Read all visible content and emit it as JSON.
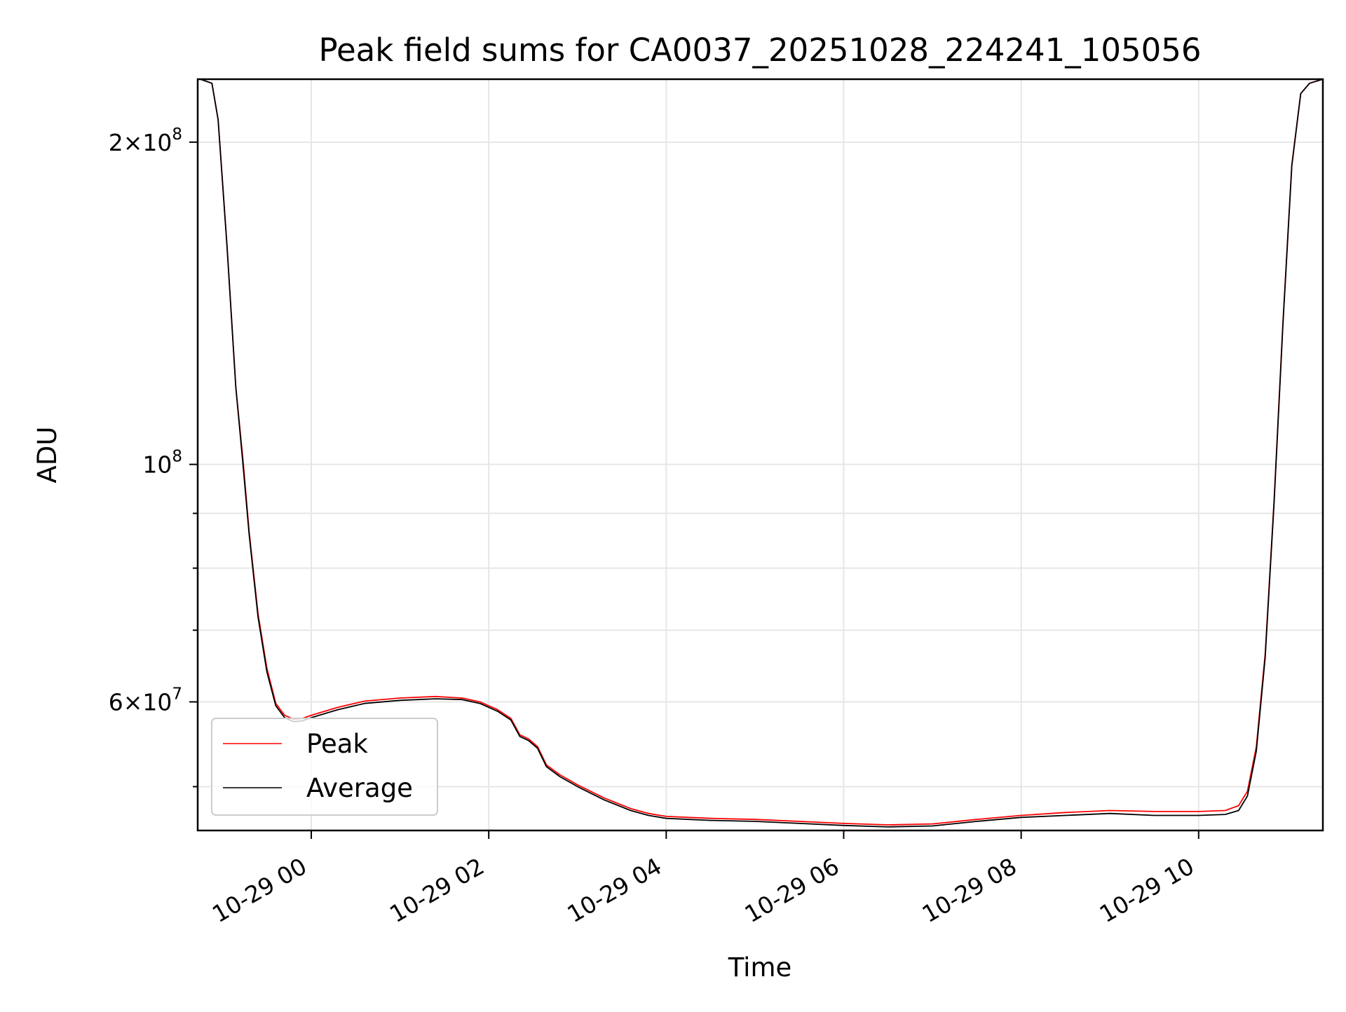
{
  "chart_data": {
    "type": "line",
    "title": "Peak field sums for CA0037_20251028_224241_105056",
    "xlabel": "Time",
    "ylabel": "ADU",
    "yscale": "log",
    "grid": true,
    "legend_position": "lower-left",
    "xlim_hours": [
      -1.28,
      11.4
    ],
    "ylim": [
      45500000,
      229000000
    ],
    "x_ticks": [
      {
        "value": 0,
        "label": "10-29 00"
      },
      {
        "value": 2,
        "label": "10-29 02"
      },
      {
        "value": 4,
        "label": "10-29 04"
      },
      {
        "value": 6,
        "label": "10-29 06"
      },
      {
        "value": 8,
        "label": "10-29 08"
      },
      {
        "value": 10,
        "label": "10-29 10"
      }
    ],
    "y_major_ticks": [
      {
        "value": 60000000,
        "mantissa": "6",
        "exponent": "7"
      },
      {
        "value": 100000000,
        "mantissa": "",
        "exponent": "8"
      },
      {
        "value": 200000000,
        "mantissa": "2",
        "exponent": "8"
      }
    ],
    "y_minor_ticks": [
      50000000,
      70000000,
      80000000,
      90000000
    ],
    "series": [
      {
        "name": "Average",
        "color": "#000000",
        "x_hours": [
          -1.25,
          -1.12,
          -1.05,
          -0.95,
          -0.85,
          -0.77,
          -0.7,
          -0.6,
          -0.5,
          -0.4,
          -0.3,
          -0.2,
          -0.1,
          0.0,
          0.3,
          0.6,
          1.0,
          1.4,
          1.7,
          1.9,
          2.1,
          2.25,
          2.35,
          2.45,
          2.55,
          2.65,
          2.8,
          3.0,
          3.3,
          3.6,
          3.8,
          4.0,
          4.5,
          5.0,
          5.5,
          6.0,
          6.5,
          7.0,
          7.5,
          8.0,
          8.5,
          9.0,
          9.5,
          10.0,
          10.3,
          10.45,
          10.55,
          10.65,
          10.75,
          10.85,
          10.95,
          11.05,
          11.15,
          11.25,
          11.4
        ],
        "values": [
          229000000,
          227000000,
          210000000,
          160000000,
          118000000,
          100000000,
          86000000,
          72000000,
          64000000,
          59500000,
          58000000,
          57500000,
          57600000,
          58000000,
          59000000,
          59800000,
          60200000,
          60400000,
          60300000,
          59800000,
          58800000,
          57700000,
          55700000,
          55200000,
          54300000,
          52200000,
          51100000,
          50000000,
          48600000,
          47500000,
          47000000,
          46700000,
          46500000,
          46400000,
          46200000,
          46000000,
          45850000,
          45950000,
          46400000,
          46800000,
          47000000,
          47200000,
          47000000,
          47000000,
          47100000,
          47500000,
          49000000,
          54000000,
          66000000,
          92000000,
          135000000,
          190000000,
          222000000,
          227000000,
          229000000
        ]
      },
      {
        "name": "Peak",
        "color": "#ff0000",
        "x_hours": [
          -1.25,
          -1.12,
          -1.05,
          -0.95,
          -0.85,
          -0.77,
          -0.7,
          -0.6,
          -0.5,
          -0.4,
          -0.3,
          -0.2,
          -0.1,
          0.0,
          0.3,
          0.6,
          1.0,
          1.4,
          1.7,
          1.9,
          2.1,
          2.25,
          2.35,
          2.45,
          2.55,
          2.65,
          2.8,
          3.0,
          3.3,
          3.6,
          3.8,
          4.0,
          4.5,
          5.0,
          5.5,
          6.0,
          6.5,
          7.0,
          7.5,
          8.0,
          8.5,
          9.0,
          9.5,
          10.0,
          10.3,
          10.45,
          10.55,
          10.65,
          10.75,
          10.85,
          10.95,
          11.05,
          11.15,
          11.25,
          11.4
        ],
        "values": [
          229000000,
          227000000,
          210000000,
          160000000,
          118000000,
          101000000,
          86500000,
          72500000,
          64500000,
          59800000,
          58300000,
          57800000,
          57900000,
          58300000,
          59300000,
          60100000,
          60500000,
          60700000,
          60500000,
          60000000,
          59000000,
          57900000,
          55900000,
          55400000,
          54500000,
          52400000,
          51300000,
          50200000,
          48800000,
          47700000,
          47200000,
          46900000,
          46700000,
          46600000,
          46400000,
          46200000,
          46050000,
          46150000,
          46600000,
          47000000,
          47300000,
          47500000,
          47400000,
          47400000,
          47500000,
          48000000,
          49500000,
          54500000,
          66500000,
          92500000,
          135500000,
          190500000,
          222000000,
          227000000,
          229000000
        ]
      }
    ]
  }
}
